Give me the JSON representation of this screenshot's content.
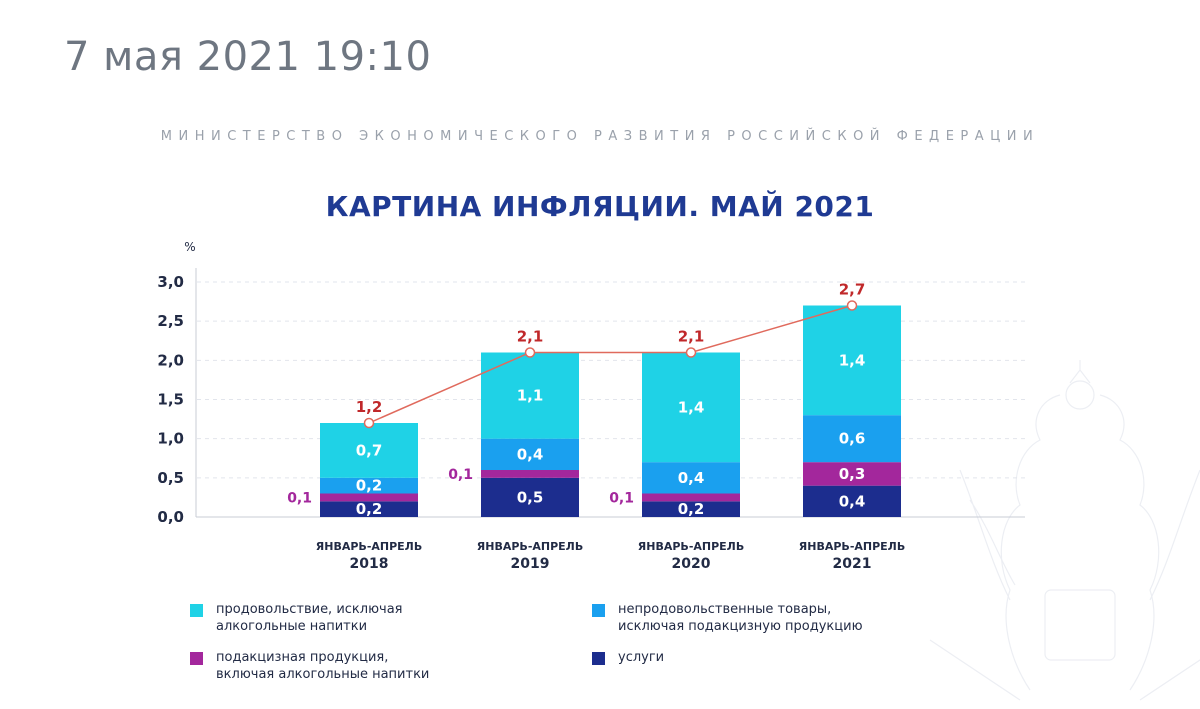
{
  "header": {
    "timestamp": "7 мая 2021 19:10",
    "ministry": "МИНИСТЕРСТВО ЭКОНОМИЧЕСКОГО РАЗВИТИЯ РОССИЙСКОЙ ФЕДЕРАЦИИ"
  },
  "colors": {
    "title": "#1f3a93",
    "food": "#1fd2e6",
    "nonfood": "#1aa0ef",
    "excise": "#a3279c",
    "services": "#1c2d8e",
    "line": "#e06a5d",
    "total_label": "#c0282a",
    "axis_text": "#222b45"
  },
  "chart_data": {
    "type": "bar",
    "stacked": true,
    "title": "КАРТИНА ИНФЛЯЦИИ. МАЙ 2021",
    "ylabel": "%",
    "ylim": [
      0,
      3.0
    ],
    "yticks": [
      "0,0",
      "0,5",
      "1,0",
      "1,5",
      "2,0",
      "2,5",
      "3,0"
    ],
    "ytick_values": [
      0,
      0.5,
      1.0,
      1.5,
      2.0,
      2.5,
      3.0
    ],
    "grid": true,
    "categories": [
      {
        "line1": "ЯНВАРЬ-АПРЕЛЬ",
        "line2": "2018"
      },
      {
        "line1": "ЯНВАРЬ-АПРЕЛЬ",
        "line2": "2019"
      },
      {
        "line1": "ЯНВАРЬ-АПРЕЛЬ",
        "line2": "2020"
      },
      {
        "line1": "ЯНВАРЬ-АПРЕЛЬ",
        "line2": "2021"
      }
    ],
    "series": [
      {
        "key": "services",
        "name": "услуги",
        "values": [
          0.2,
          0.5,
          0.2,
          0.4
        ],
        "labels": [
          "0,2",
          "0,5",
          "0,2",
          "0,4"
        ]
      },
      {
        "key": "excise",
        "name": "подакцизная продукция, включая алкогольные напитки",
        "values": [
          0.1,
          0.1,
          0.1,
          0.3
        ],
        "labels": [
          "0,1",
          "0,1",
          "0,1",
          "0,3"
        ]
      },
      {
        "key": "nonfood",
        "name": "непродовольственные товары, исключая подакцизную продукцию",
        "values": [
          0.2,
          0.4,
          0.4,
          0.6
        ],
        "labels": [
          "0,2",
          "0,4",
          "0,4",
          "0,6"
        ]
      },
      {
        "key": "food",
        "name": "продовольствие, исключая алкогольные напитки",
        "values": [
          0.7,
          1.1,
          1.4,
          1.4
        ],
        "labels": [
          "0,7",
          "1,1",
          "1,4",
          "1,4"
        ]
      }
    ],
    "totals": {
      "values": [
        1.2,
        2.1,
        2.1,
        2.7
      ],
      "labels": [
        "1,2",
        "2,1",
        "2,1",
        "2,7"
      ]
    }
  },
  "legend": [
    {
      "key": "food",
      "line1": "продовольствие, исключая",
      "line2": "алкогольные напитки"
    },
    {
      "key": "nonfood",
      "line1": "непродовольственные товары,",
      "line2": "исключая подакцизную продукцию"
    },
    {
      "key": "excise",
      "line1": "подакцизная продукция,",
      "line2": "включая алкогольные напитки"
    },
    {
      "key": "services",
      "line1": "услуги",
      "line2": ""
    }
  ]
}
